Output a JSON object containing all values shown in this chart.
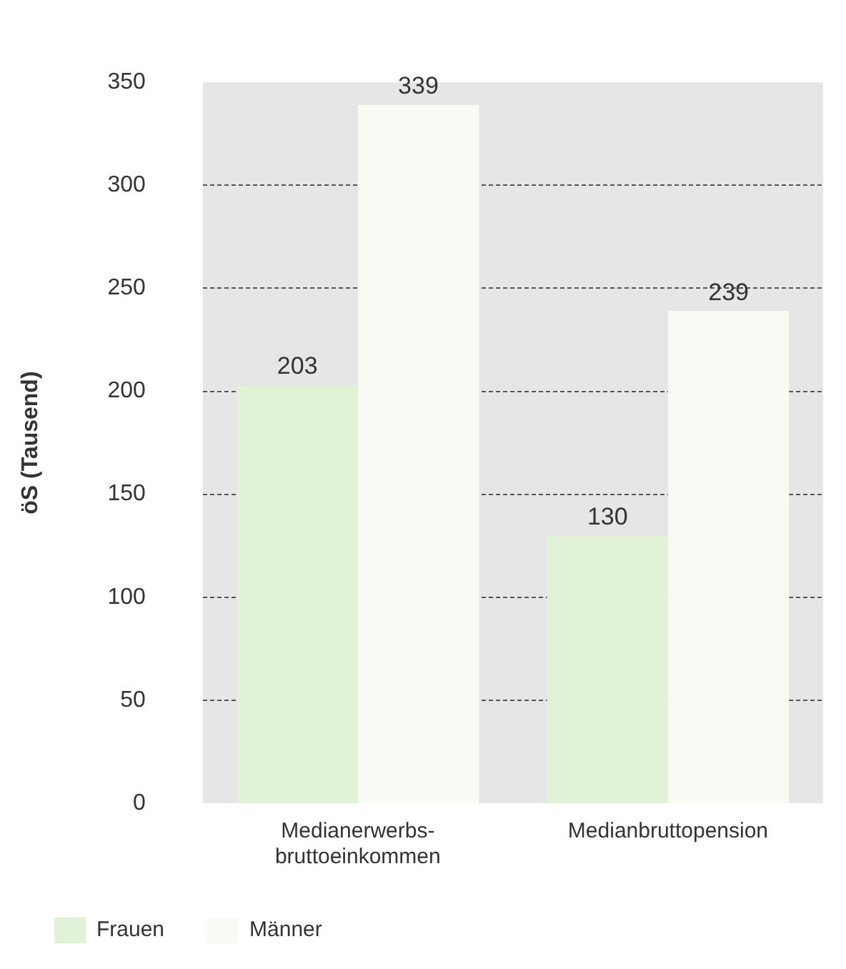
{
  "chart_data": {
    "type": "bar",
    "ylabel": "öS (Tausend)",
    "categories": [
      "Medianerwerbs-bruttoeinkommen",
      "Medianbruttopension"
    ],
    "series": [
      {
        "name": "Frauen",
        "color": "#e2f2d6",
        "values": [
          203,
          130
        ]
      },
      {
        "name": "Männer",
        "color": "#f8fbf4",
        "values": [
          339,
          239
        ]
      }
    ],
    "ylim": [
      0,
      350
    ],
    "yticks": [
      0,
      50,
      100,
      150,
      200,
      250,
      300,
      350
    ],
    "grid": "y",
    "legend": "bottom left",
    "data_labels": true
  }
}
